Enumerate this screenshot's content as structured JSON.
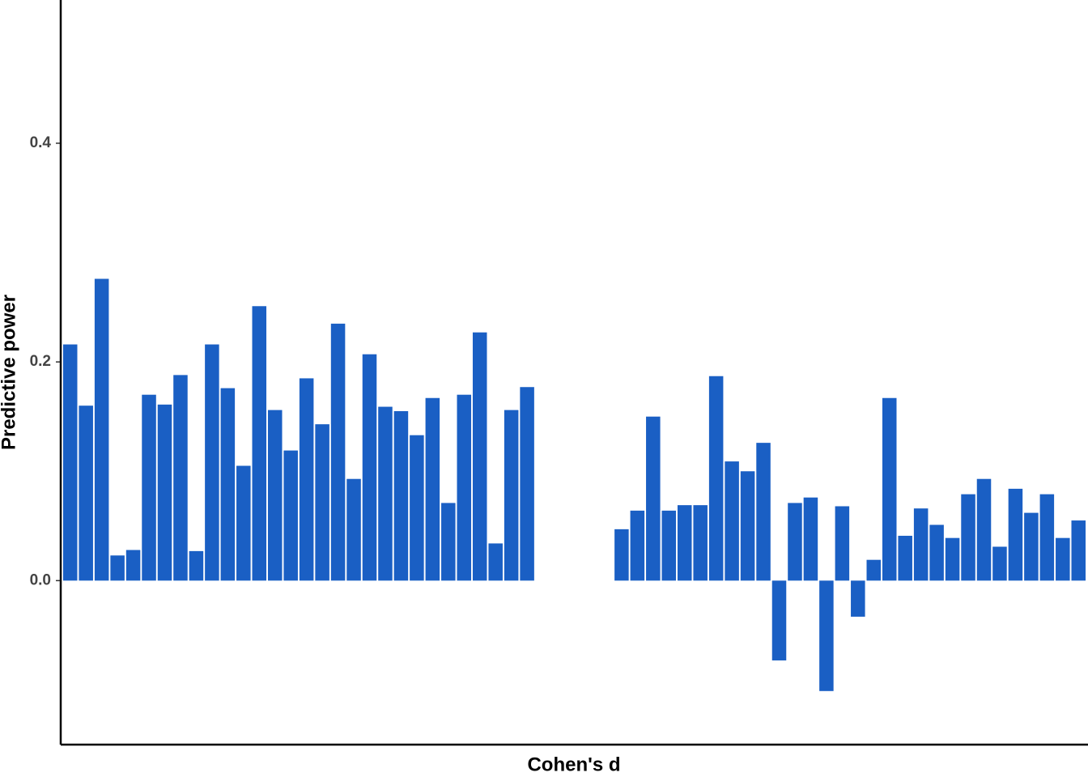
{
  "chart_data": {
    "type": "bar",
    "xlabel": "Cohen's d",
    "ylabel": "Predictive power",
    "categories": [
      null,
      null,
      null,
      null,
      null,
      null,
      null,
      null,
      null,
      null,
      null,
      null,
      null,
      null,
      null,
      null,
      null,
      null,
      null,
      null,
      null,
      null,
      null,
      null,
      null,
      null,
      null,
      null,
      null,
      null,
      null,
      null,
      null,
      null,
      null,
      null,
      null,
      null,
      null,
      null,
      null,
      null,
      null,
      null,
      null,
      null,
      null,
      null,
      null,
      null,
      null,
      null,
      null,
      null,
      null,
      null,
      null,
      null,
      null,
      null,
      null,
      null,
      null,
      null,
      null
    ],
    "values": [
      0.216,
      0.16,
      0.276,
      0.023,
      0.028,
      0.17,
      0.161,
      0.188,
      0.027,
      0.216,
      0.176,
      0.105,
      0.251,
      0.156,
      0.119,
      0.185,
      0.143,
      0.235,
      0.093,
      0.207,
      0.159,
      0.155,
      0.133,
      0.167,
      0.071,
      0.17,
      0.227,
      0.034,
      0.156,
      0.177,
      null,
      null,
      null,
      null,
      null,
      0.047,
      0.064,
      0.15,
      0.064,
      0.069,
      0.069,
      0.187,
      0.109,
      0.1,
      0.126,
      -0.073,
      0.071,
      0.076,
      -0.101,
      0.068,
      -0.033,
      0.019,
      0.167,
      0.041,
      0.066,
      0.051,
      0.039,
      0.079,
      0.093,
      0.031,
      0.084,
      0.062,
      0.079,
      0.039,
      0.055
    ],
    "color": "#1a5fc4",
    "ylim": [
      -0.15,
      0.531
    ],
    "yticks": [
      {
        "value": 0,
        "label": "0.0"
      },
      0.2,
      0.4
    ],
    "grid": false
  }
}
